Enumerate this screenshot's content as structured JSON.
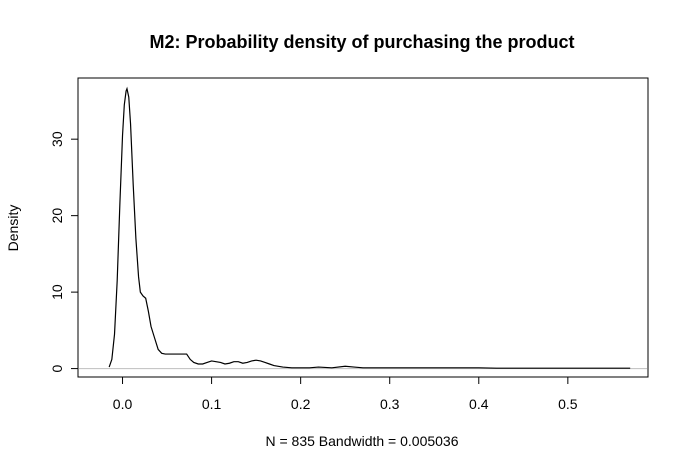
{
  "chart_data": {
    "type": "line",
    "title": "M2: Probability density of purchasing the product",
    "xlabel": "N = 835   Bandwidth = 0.005036",
    "ylabel": "Density",
    "xlim": [
      -0.05,
      0.59
    ],
    "ylim": [
      -1.1,
      38
    ],
    "x_ticks": [
      0.0,
      0.1,
      0.2,
      0.3,
      0.4,
      0.5
    ],
    "x_tick_labels": [
      "0.0",
      "0.1",
      "0.2",
      "0.3",
      "0.4",
      "0.5"
    ],
    "y_ticks": [
      0,
      10,
      20,
      30
    ],
    "y_tick_labels": [
      "0",
      "10",
      "20",
      "30"
    ],
    "grid": false,
    "zero_line": true,
    "series": [
      {
        "x": [
          -0.015,
          -0.012,
          -0.009,
          -0.006,
          -0.003,
          0.0,
          0.002,
          0.004,
          0.005,
          0.007,
          0.009,
          0.012,
          0.015,
          0.018,
          0.02,
          0.023,
          0.026,
          0.029,
          0.032,
          0.036,
          0.04,
          0.044,
          0.048,
          0.052,
          0.058,
          0.065,
          0.072,
          0.076,
          0.08,
          0.085,
          0.09,
          0.095,
          0.1,
          0.105,
          0.11,
          0.115,
          0.12,
          0.125,
          0.13,
          0.135,
          0.14,
          0.145,
          0.15,
          0.155,
          0.16,
          0.165,
          0.17,
          0.18,
          0.19,
          0.2,
          0.21,
          0.22,
          0.235,
          0.25,
          0.26,
          0.27,
          0.28,
          0.3,
          0.32,
          0.34,
          0.36,
          0.38,
          0.4,
          0.42,
          0.44,
          0.46,
          0.48,
          0.5,
          0.52,
          0.54,
          0.56,
          0.57
        ],
        "values": [
          0.2,
          1.2,
          4.5,
          11.5,
          21.5,
          30.5,
          34.5,
          36.3,
          36.6,
          35.5,
          32.0,
          24.0,
          17.0,
          12.0,
          10.0,
          9.5,
          9.2,
          7.5,
          5.5,
          4.0,
          2.5,
          2.0,
          1.9,
          1.9,
          1.9,
          1.9,
          1.9,
          1.2,
          0.8,
          0.6,
          0.6,
          0.8,
          1.0,
          0.9,
          0.8,
          0.6,
          0.7,
          0.9,
          0.9,
          0.7,
          0.8,
          1.0,
          1.1,
          1.0,
          0.8,
          0.6,
          0.4,
          0.2,
          0.1,
          0.1,
          0.1,
          0.2,
          0.1,
          0.3,
          0.2,
          0.1,
          0.1,
          0.1,
          0.1,
          0.1,
          0.1,
          0.1,
          0.1,
          0.05,
          0.05,
          0.05,
          0.05,
          0.05,
          0.05,
          0.05,
          0.05,
          0.05
        ]
      }
    ]
  }
}
